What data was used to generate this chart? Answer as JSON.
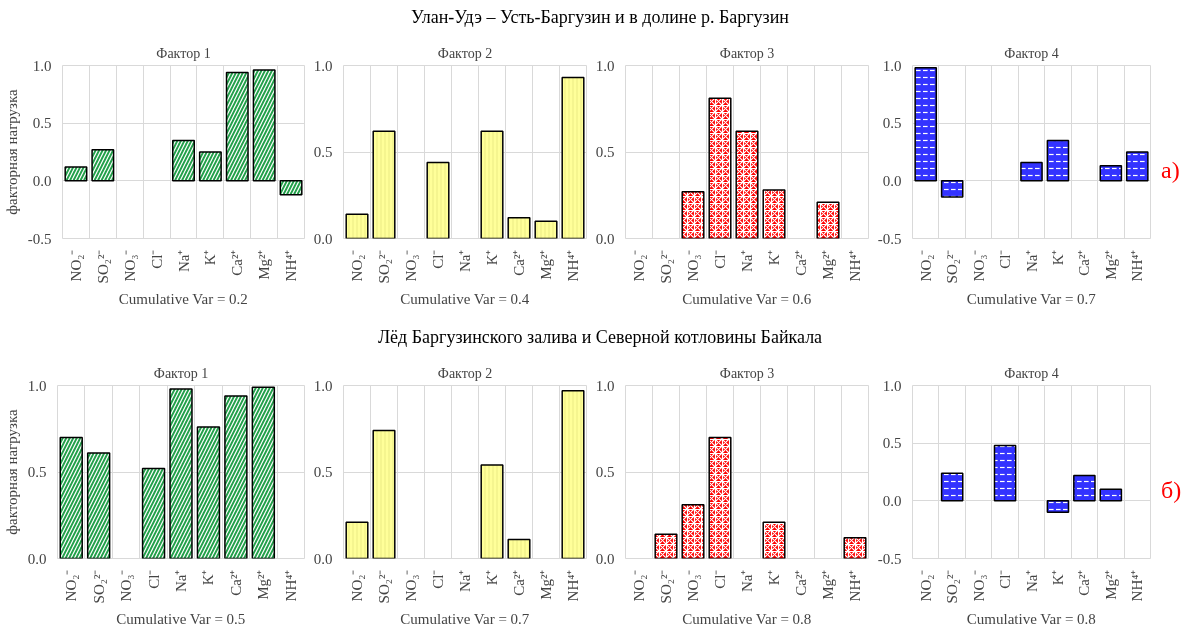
{
  "chart_data": [
    {
      "type": "bar",
      "title": "Фактор 1",
      "xlabel": "Cumulative Var = 0.2",
      "ylabel": "факторная нагрузка",
      "annotations": [
        "Улан-Удэ – Усть-Баргузин и в долине р. Баргузин"
      ],
      "categories": [
        "NO₂⁻",
        "SO₂²⁻",
        "NO₃⁻",
        "Cl⁻",
        "Na⁺",
        "K⁺",
        "Ca²⁺",
        "Mg²⁺",
        "NH⁴⁺"
      ],
      "values": [
        0.12,
        0.27,
        null,
        null,
        0.35,
        0.25,
        0.94,
        0.96,
        -0.12
      ],
      "color": "#22a04a",
      "ylim": [
        -0.5,
        1.0
      ],
      "yticks": [
        {
          "value": -0.5,
          "label": "-0.5"
        },
        {
          "value": 0,
          "label": "0.0"
        },
        {
          "value": 0.5,
          "label": "0.5"
        },
        {
          "value": 1,
          "label": "1.0"
        }
      ],
      "grid": true
    },
    {
      "type": "bar",
      "title": "Фактор 2",
      "xlabel": "Cumulative Var = 0.4",
      "categories": [
        "NO₂⁻",
        "SO₂²⁻",
        "NO₃⁻",
        "Cl⁻",
        "Na⁺",
        "K⁺",
        "Ca²⁺",
        "Mg²⁺",
        "NH⁴⁺"
      ],
      "values": [
        0.14,
        0.62,
        null,
        0.44,
        null,
        0.62,
        0.12,
        0.1,
        0.93
      ],
      "color": "#ffff99",
      "ylim": [
        0,
        1.0
      ],
      "yticks": [
        {
          "value": 0,
          "label": "0.0"
        },
        {
          "value": 0.5,
          "label": "0.5"
        },
        {
          "value": 1,
          "label": "1.0"
        }
      ],
      "grid": true
    },
    {
      "type": "bar",
      "title": "Фактор 3",
      "xlabel": "Cumulative Var = 0.6",
      "categories": [
        "NO₂⁻",
        "SO₂²⁻",
        "NO₃⁻",
        "Cl⁻",
        "Na⁺",
        "K⁺",
        "Ca²⁺",
        "Mg²⁺",
        "NH⁴⁺"
      ],
      "values": [
        null,
        null,
        0.27,
        0.81,
        0.62,
        0.28,
        null,
        0.21,
        null
      ],
      "color": "#ff0000",
      "ylim": [
        0,
        1.0
      ],
      "yticks": [
        {
          "value": 0,
          "label": "0.0"
        },
        {
          "value": 0.5,
          "label": "0.5"
        },
        {
          "value": 1,
          "label": "1.0"
        }
      ],
      "grid": true
    },
    {
      "type": "bar",
      "title": "Фактор 4",
      "xlabel": "Cumulative Var = 0.7",
      "annotations": [
        "а)"
      ],
      "categories": [
        "NO₂⁻",
        "SO₂²⁻",
        "NO₃⁻",
        "Cl⁻",
        "Na⁺",
        "K⁺",
        "Ca²⁺",
        "Mg²⁺",
        "NH⁴⁺"
      ],
      "values": [
        0.98,
        -0.14,
        null,
        null,
        0.16,
        0.35,
        null,
        0.13,
        0.25
      ],
      "color": "#3333ff",
      "ylim": [
        -0.5,
        1.0
      ],
      "yticks": [
        {
          "value": -0.5,
          "label": "-0.5"
        },
        {
          "value": 0,
          "label": "0.0"
        },
        {
          "value": 0.5,
          "label": "0.5"
        },
        {
          "value": 1,
          "label": "1.0"
        }
      ],
      "grid": true
    },
    {
      "type": "bar",
      "title": "Фактор 1",
      "xlabel": "Cumulative Var = 0.5",
      "ylabel": "факторная нагрузка",
      "annotations": [
        "Лёд Баргузинского залива и Северной котловины Байкала"
      ],
      "categories": [
        "NO₂⁻",
        "SO₂²⁻",
        "NO₃⁻",
        "Cl⁻",
        "Na⁺",
        "K⁺",
        "Ca²⁺",
        "Mg²⁺",
        "NH⁴⁺"
      ],
      "values": [
        0.7,
        0.61,
        null,
        0.52,
        0.98,
        0.76,
        0.94,
        0.99,
        null
      ],
      "color": "#22a04a",
      "ylim": [
        0,
        1.0
      ],
      "yticks": [
        {
          "value": 0,
          "label": "0.0"
        },
        {
          "value": 0.5,
          "label": "0.5"
        },
        {
          "value": 1,
          "label": "1.0"
        }
      ],
      "grid": true
    },
    {
      "type": "bar",
      "title": "Фактор 2",
      "xlabel": "Cumulative Var = 0.7",
      "categories": [
        "NO₂⁻",
        "SO₂²⁻",
        "NO₃⁻",
        "Cl⁻",
        "Na⁺",
        "K⁺",
        "Ca²⁺",
        "Mg²⁺",
        "NH⁴⁺"
      ],
      "values": [
        0.21,
        0.74,
        null,
        null,
        null,
        0.54,
        0.11,
        null,
        0.97
      ],
      "color": "#ffff99",
      "ylim": [
        0,
        1.0
      ],
      "yticks": [
        {
          "value": 0,
          "label": "0.0"
        },
        {
          "value": 0.5,
          "label": "0.5"
        },
        {
          "value": 1,
          "label": "1.0"
        }
      ],
      "grid": true
    },
    {
      "type": "bar",
      "title": "Фактор 3",
      "xlabel": "Cumulative Var = 0.8",
      "categories": [
        "NO₂⁻",
        "SO₂²⁻",
        "NO₃⁻",
        "Cl⁻",
        "Na⁺",
        "K⁺",
        "Ca²⁺",
        "Mg²⁺",
        "NH⁴⁺"
      ],
      "values": [
        null,
        0.14,
        0.31,
        0.7,
        null,
        0.21,
        null,
        null,
        0.12
      ],
      "color": "#ff0000",
      "ylim": [
        0,
        1.0
      ],
      "yticks": [
        {
          "value": 0,
          "label": "0.0"
        },
        {
          "value": 0.5,
          "label": "0.5"
        },
        {
          "value": 1,
          "label": "1.0"
        }
      ],
      "grid": true
    },
    {
      "type": "bar",
      "title": "Фактор 4",
      "xlabel": "Cumulative Var = 0.8",
      "annotations": [
        "б)"
      ],
      "categories": [
        "NO₂⁻",
        "SO₂²⁻",
        "NO₃⁻",
        "Cl⁻",
        "Na⁺",
        "K⁺",
        "Ca²⁺",
        "Mg²⁺",
        "NH⁴⁺"
      ],
      "values": [
        null,
        0.24,
        null,
        0.48,
        null,
        -0.1,
        0.22,
        0.1,
        null
      ],
      "color": "#3333ff",
      "ylim": [
        -0.5,
        1.0
      ],
      "yticks": [
        {
          "value": -0.5,
          "label": "-0.5"
        },
        {
          "value": 0,
          "label": "0.0"
        },
        {
          "value": 0.5,
          "label": "0.5"
        },
        {
          "value": 1,
          "label": "1.0"
        }
      ],
      "grid": true
    }
  ]
}
